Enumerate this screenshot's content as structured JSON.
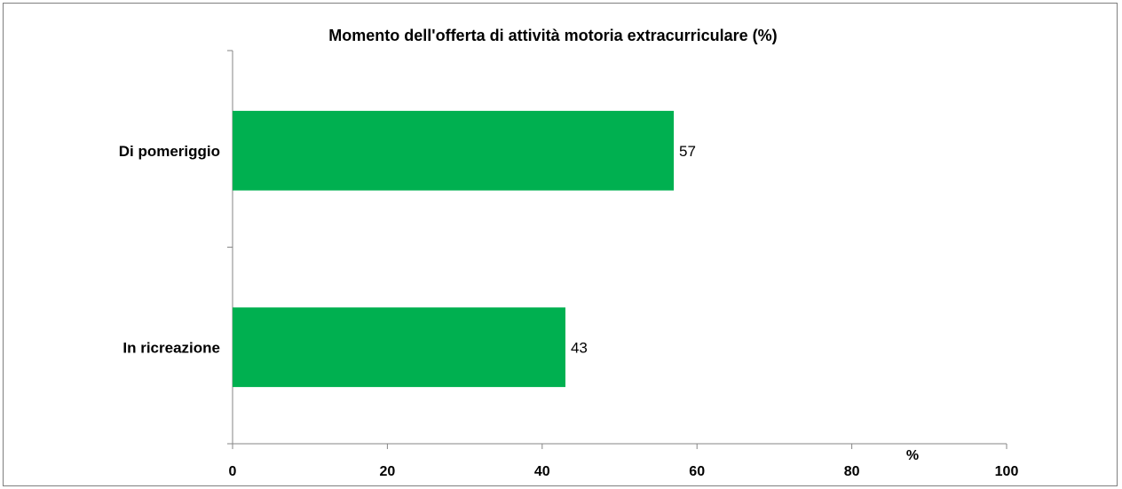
{
  "chart_data": {
    "type": "bar",
    "orientation": "horizontal",
    "title": "Momento dell'offerta di attività motoria extracurriculare (%)",
    "categories": [
      "Di pomeriggio",
      "In ricreazione"
    ],
    "values": [
      57,
      43
    ],
    "data_labels": [
      "57",
      "43"
    ],
    "xlabel": "%",
    "xlim": [
      0,
      100
    ],
    "x_ticks": [
      0,
      20,
      40,
      60,
      80,
      100
    ],
    "bar_color": "#00b050",
    "grid": false,
    "legend": "none"
  }
}
